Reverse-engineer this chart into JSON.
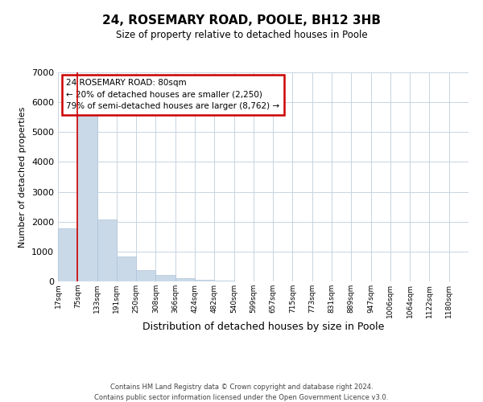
{
  "title": "24, ROSEMARY ROAD, POOLE, BH12 3HB",
  "subtitle": "Size of property relative to detached houses in Poole",
  "xlabel": "Distribution of detached houses by size in Poole",
  "ylabel": "Number of detached properties",
  "bar_color": "#c9d9e8",
  "bar_edge_color": "#b0c4d8",
  "grid_color": "#c8d4e0",
  "bin_labels": [
    "17sqm",
    "75sqm",
    "133sqm",
    "191sqm",
    "250sqm",
    "308sqm",
    "366sqm",
    "424sqm",
    "482sqm",
    "540sqm",
    "599sqm",
    "657sqm",
    "715sqm",
    "773sqm",
    "831sqm",
    "889sqm",
    "947sqm",
    "1006sqm",
    "1064sqm",
    "1122sqm",
    "1180sqm"
  ],
  "bar_heights": [
    1780,
    5780,
    2060,
    830,
    370,
    220,
    100,
    60,
    30,
    10,
    5,
    0,
    0,
    0,
    0,
    0,
    0,
    0,
    0,
    0,
    0
  ],
  "ylim": [
    0,
    7000
  ],
  "yticks": [
    0,
    1000,
    2000,
    3000,
    4000,
    5000,
    6000,
    7000
  ],
  "property_line_x": 1,
  "property_line_color": "#cc0000",
  "annotation_box_text": "24 ROSEMARY ROAD: 80sqm\n← 20% of detached houses are smaller (2,250)\n79% of semi-detached houses are larger (8,762) →",
  "footer_line1": "Contains HM Land Registry data © Crown copyright and database right 2024.",
  "footer_line2": "Contains public sector information licensed under the Open Government Licence v3.0.",
  "background_color": "#ffffff"
}
